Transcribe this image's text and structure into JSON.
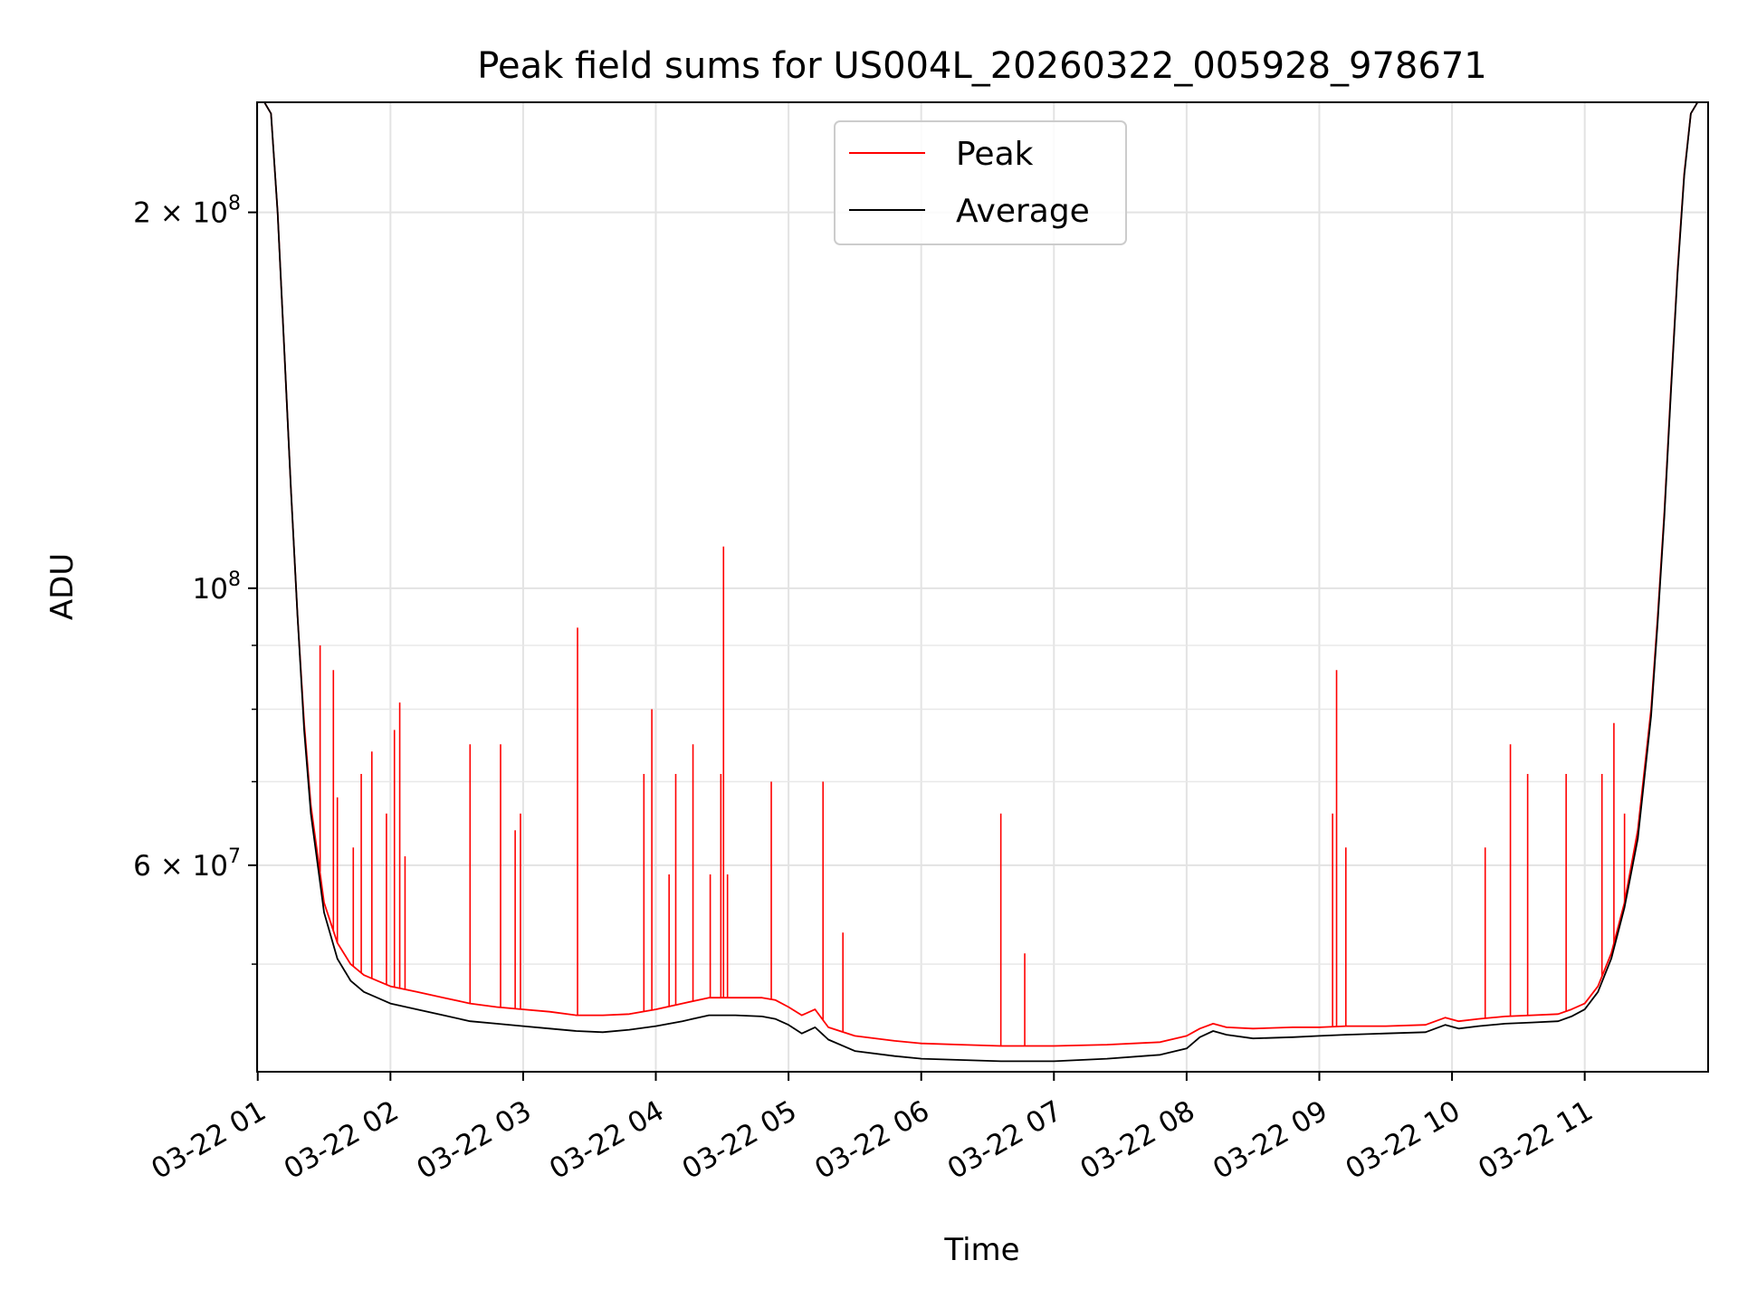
{
  "chart_data": {
    "type": "line",
    "title": "Peak field sums for US004L_20260322_005928_978671",
    "xlabel": "Time",
    "ylabel": "ADU",
    "yscale": "log",
    "ylim": [
      41000000,
      245000000
    ],
    "xlim": [
      0.995,
      11.93
    ],
    "grid": true,
    "legend_position": "top-center",
    "x_ticks": [
      {
        "value": 1,
        "label": "03-22 01"
      },
      {
        "value": 2,
        "label": "03-22 02"
      },
      {
        "value": 3,
        "label": "03-22 03"
      },
      {
        "value": 4,
        "label": "03-22 04"
      },
      {
        "value": 5,
        "label": "03-22 05"
      },
      {
        "value": 6,
        "label": "03-22 06"
      },
      {
        "value": 7,
        "label": "03-22 07"
      },
      {
        "value": 8,
        "label": "03-22 08"
      },
      {
        "value": 9,
        "label": "03-22 09"
      },
      {
        "value": 10,
        "label": "03-22 10"
      },
      {
        "value": 11,
        "label": "03-22 11"
      }
    ],
    "y_major_ticks": [
      {
        "value": 60000000,
        "base": "6",
        "exp": "7"
      },
      {
        "value": 100000000,
        "base": "",
        "exp": "8"
      },
      {
        "value": 200000000,
        "base": "2",
        "exp": "8"
      }
    ],
    "y_minor_ticks": [
      50000000,
      70000000,
      80000000,
      90000000
    ],
    "times_symbol": "×",
    "ten": "10",
    "series": [
      {
        "name": "Peak",
        "color": "#ff0000",
        "x": [
          0.995,
          1.05,
          1.1,
          1.15,
          1.2,
          1.25,
          1.3,
          1.35,
          1.4,
          1.5,
          1.6,
          1.7,
          1.8,
          1.9,
          2.0,
          2.2,
          2.4,
          2.6,
          2.8,
          3.0,
          3.2,
          3.4,
          3.6,
          3.8,
          4.0,
          4.2,
          4.4,
          4.6,
          4.8,
          4.9,
          5.0,
          5.1,
          5.2,
          5.3,
          5.5,
          5.8,
          6.0,
          6.3,
          6.6,
          7.0,
          7.4,
          7.8,
          8.0,
          8.1,
          8.2,
          8.3,
          8.5,
          8.8,
          9.0,
          9.2,
          9.5,
          9.8,
          9.95,
          10.05,
          10.2,
          10.4,
          10.6,
          10.8,
          10.9,
          11.0,
          11.1,
          11.2,
          11.3,
          11.4,
          11.5,
          11.55,
          11.6,
          11.65,
          11.7,
          11.75,
          11.8,
          11.85,
          11.93
        ],
        "y": [
          245000000,
          245000000,
          240000000,
          200000000,
          155000000,
          120000000,
          95000000,
          78000000,
          67000000,
          56000000,
          52000000,
          50000000,
          49000000,
          48500000,
          48000000,
          47500000,
          47000000,
          46500000,
          46200000,
          46000000,
          45800000,
          45500000,
          45500000,
          45600000,
          46000000,
          46500000,
          47000000,
          47000000,
          47000000,
          46800000,
          46200000,
          45500000,
          46000000,
          44500000,
          43800000,
          43400000,
          43200000,
          43100000,
          43000000,
          43000000,
          43100000,
          43300000,
          43800000,
          44400000,
          44800000,
          44500000,
          44400000,
          44500000,
          44500000,
          44600000,
          44600000,
          44700000,
          45300000,
          45000000,
          45200000,
          45400000,
          45500000,
          45600000,
          46000000,
          46500000,
          48000000,
          51000000,
          56000000,
          64000000,
          80000000,
          95000000,
          115000000,
          145000000,
          180000000,
          215000000,
          240000000,
          245000000,
          245000000
        ]
      },
      {
        "name": "Average",
        "color": "#000000",
        "x": [
          0.995,
          1.05,
          1.1,
          1.15,
          1.2,
          1.25,
          1.3,
          1.35,
          1.4,
          1.5,
          1.6,
          1.7,
          1.8,
          1.9,
          2.0,
          2.2,
          2.4,
          2.6,
          2.8,
          3.0,
          3.2,
          3.4,
          3.6,
          3.8,
          4.0,
          4.2,
          4.4,
          4.6,
          4.8,
          4.9,
          5.0,
          5.1,
          5.2,
          5.3,
          5.5,
          5.8,
          6.0,
          6.3,
          6.6,
          7.0,
          7.4,
          7.8,
          8.0,
          8.1,
          8.2,
          8.3,
          8.5,
          8.8,
          9.0,
          9.2,
          9.5,
          9.8,
          9.95,
          10.05,
          10.2,
          10.4,
          10.6,
          10.8,
          10.9,
          11.0,
          11.1,
          11.2,
          11.3,
          11.4,
          11.5,
          11.55,
          11.6,
          11.65,
          11.7,
          11.75,
          11.8,
          11.85,
          11.93
        ],
        "y": [
          245000000,
          245000000,
          240000000,
          200000000,
          155000000,
          120000000,
          95000000,
          77000000,
          66000000,
          55000000,
          50500000,
          48500000,
          47500000,
          47000000,
          46500000,
          46000000,
          45500000,
          45000000,
          44800000,
          44600000,
          44400000,
          44200000,
          44100000,
          44300000,
          44600000,
          45000000,
          45500000,
          45500000,
          45400000,
          45200000,
          44700000,
          44000000,
          44500000,
          43500000,
          42600000,
          42200000,
          42000000,
          41900000,
          41800000,
          41800000,
          42000000,
          42300000,
          42800000,
          43700000,
          44200000,
          43900000,
          43600000,
          43700000,
          43800000,
          43900000,
          44000000,
          44100000,
          44700000,
          44400000,
          44600000,
          44800000,
          44900000,
          45000000,
          45400000,
          46000000,
          47500000,
          50500000,
          55500000,
          63000000,
          79000000,
          94000000,
          114000000,
          144000000,
          179000000,
          214000000,
          240000000,
          245000000,
          245000000
        ]
      }
    ],
    "peak_spikes": [
      {
        "x": 1.47,
        "y": 90000000
      },
      {
        "x": 1.57,
        "y": 86000000
      },
      {
        "x": 1.6,
        "y": 68000000
      },
      {
        "x": 1.72,
        "y": 62000000
      },
      {
        "x": 1.78,
        "y": 71000000
      },
      {
        "x": 1.86,
        "y": 74000000
      },
      {
        "x": 1.97,
        "y": 66000000
      },
      {
        "x": 2.03,
        "y": 77000000
      },
      {
        "x": 2.07,
        "y": 81000000
      },
      {
        "x": 2.11,
        "y": 61000000
      },
      {
        "x": 2.6,
        "y": 75000000
      },
      {
        "x": 2.83,
        "y": 75000000
      },
      {
        "x": 2.94,
        "y": 64000000
      },
      {
        "x": 2.98,
        "y": 66000000
      },
      {
        "x": 3.41,
        "y": 93000000
      },
      {
        "x": 3.91,
        "y": 71000000
      },
      {
        "x": 3.97,
        "y": 80000000
      },
      {
        "x": 4.1,
        "y": 59000000
      },
      {
        "x": 4.15,
        "y": 71000000
      },
      {
        "x": 4.28,
        "y": 75000000
      },
      {
        "x": 4.41,
        "y": 59000000
      },
      {
        "x": 4.49,
        "y": 71000000
      },
      {
        "x": 4.51,
        "y": 108000000
      },
      {
        "x": 4.54,
        "y": 59000000
      },
      {
        "x": 4.87,
        "y": 70000000
      },
      {
        "x": 5.26,
        "y": 70000000
      },
      {
        "x": 5.41,
        "y": 53000000
      },
      {
        "x": 6.6,
        "y": 66000000
      },
      {
        "x": 6.78,
        "y": 51000000
      },
      {
        "x": 9.1,
        "y": 66000000
      },
      {
        "x": 9.13,
        "y": 86000000
      },
      {
        "x": 9.2,
        "y": 62000000
      },
      {
        "x": 10.25,
        "y": 62000000
      },
      {
        "x": 10.44,
        "y": 75000000
      },
      {
        "x": 10.57,
        "y": 71000000
      },
      {
        "x": 10.86,
        "y": 71000000
      },
      {
        "x": 11.13,
        "y": 71000000
      },
      {
        "x": 11.22,
        "y": 78000000
      },
      {
        "x": 11.3,
        "y": 66000000
      }
    ]
  }
}
